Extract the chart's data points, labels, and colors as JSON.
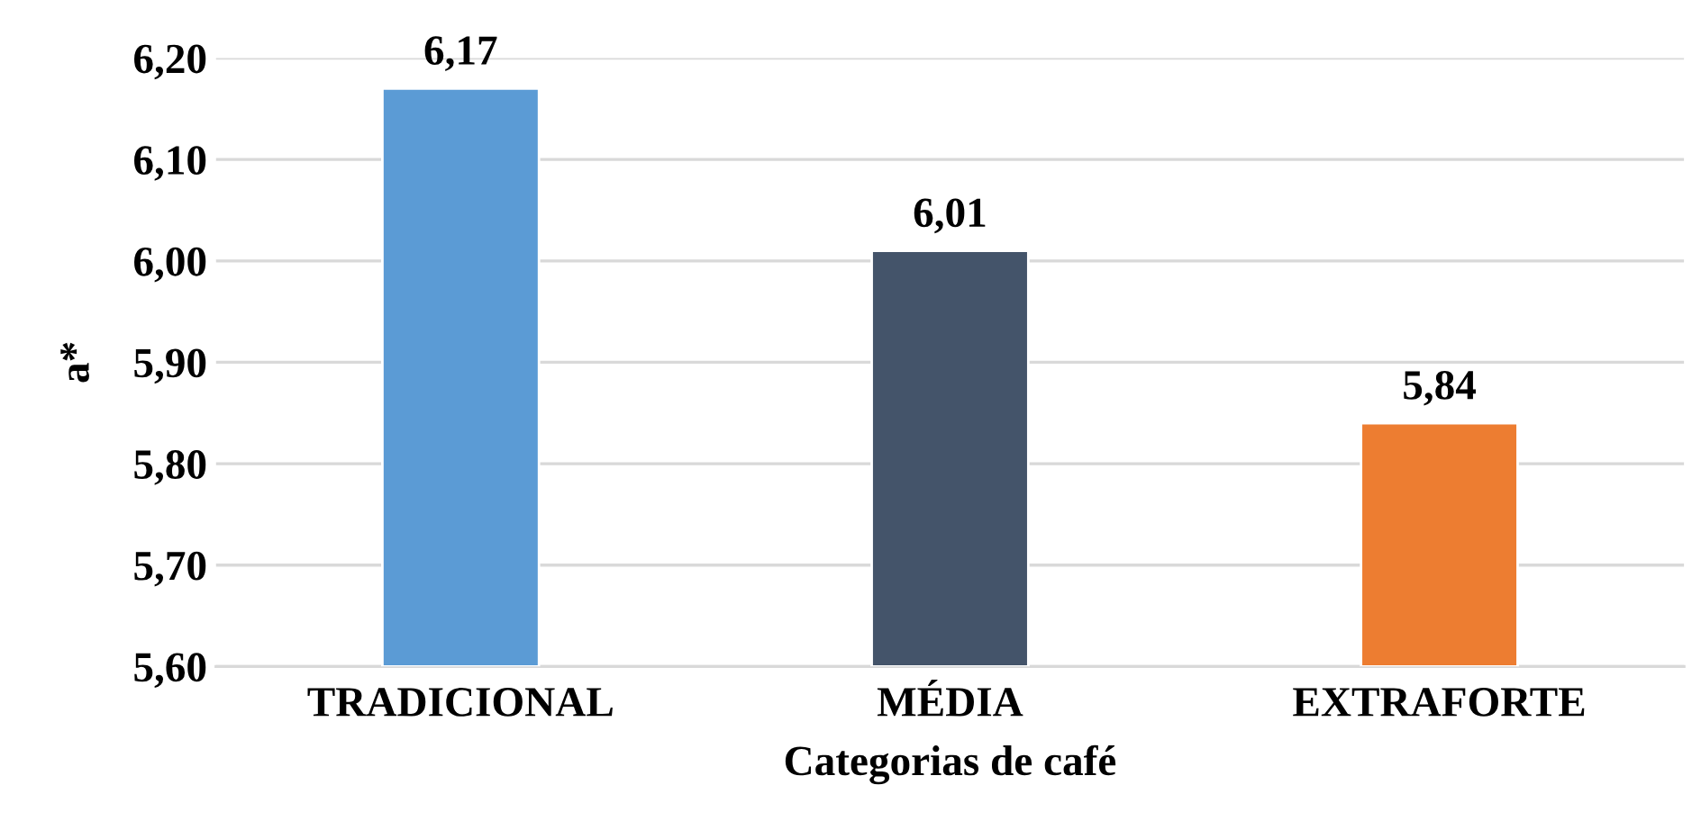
{
  "chart_data": {
    "type": "bar",
    "xlabel": "Categorias de café",
    "ylabel": "a*",
    "categories": [
      "TRADICIONAL",
      "MÉDIA",
      "EXTRAFORTE"
    ],
    "values": [
      6.17,
      6.01,
      5.84
    ],
    "value_labels": [
      "6,17",
      "6,01",
      "5,84"
    ],
    "colors": [
      "#5b9bd5",
      "#44546a",
      "#ed7d31"
    ],
    "ylim": [
      5.6,
      6.2
    ],
    "yticks": [
      {
        "value": 5.6,
        "label": "5,60"
      },
      {
        "value": 5.7,
        "label": "5,70"
      },
      {
        "value": 5.8,
        "label": "5,80"
      },
      {
        "value": 5.9,
        "label": "5,90"
      },
      {
        "value": 6.0,
        "label": "6,00"
      },
      {
        "value": 6.1,
        "label": "6,10"
      },
      {
        "value": 6.2,
        "label": "6,20"
      }
    ],
    "grid": "y"
  }
}
